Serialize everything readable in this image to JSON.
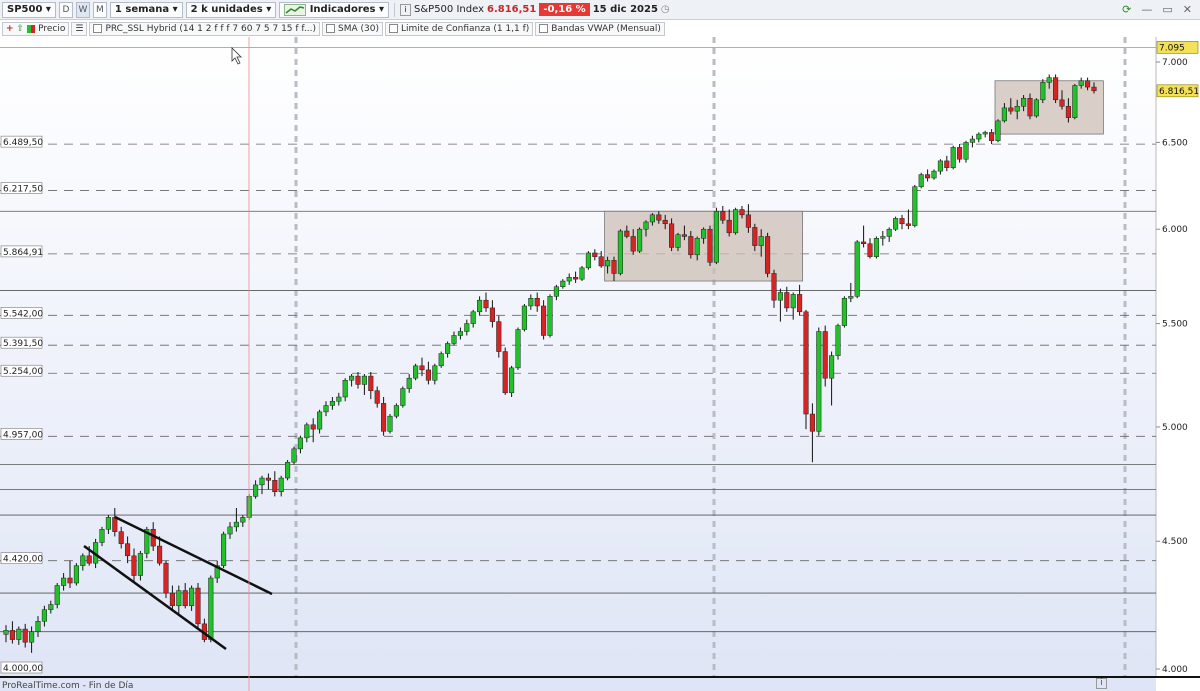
{
  "toolbar": {
    "symbol": "SP500",
    "period_buttons": [
      "D",
      "W",
      "M"
    ],
    "timeframe": "1 semana",
    "units": "2 k unidades",
    "indicators_label": "Indicadores",
    "instrument_name": "S&P500 Index",
    "last_price": "6.816,51",
    "change": "-0,16 %",
    "date": "15 dic 2025"
  },
  "indicator_bar": {
    "price_label": "Precio",
    "items": [
      "PRC_SSL Hybrid (14 1 2 f f f 7 60 7 5 7 15 f f...)",
      "SMA (30)",
      "Limite de Confianza (1 1,1 f)",
      "Bandas VWAP  (Mensual)"
    ]
  },
  "footer": {
    "source": "ProRealTime.com - Fin de Día"
  },
  "colors": {
    "up": "#22c02a",
    "down": "#d62424",
    "zone": "#cdbfb6",
    "line_label": "#f4e15a"
  },
  "chart_data": {
    "type": "candlestick",
    "y_scale": "log",
    "y_range": [
      4000,
      7150
    ],
    "right_axis_ticks": [
      {
        "value": 7000,
        "label": "7.000"
      },
      {
        "value": 6500,
        "label": "6.500"
      },
      {
        "value": 6000,
        "label": "6.000"
      },
      {
        "value": 5500,
        "label": "5.500"
      },
      {
        "value": 5000,
        "label": "5.000"
      },
      {
        "value": 4500,
        "label": "4.500"
      },
      {
        "value": 4000,
        "label": "4.000"
      }
    ],
    "left_level_labels": [
      {
        "value": 6489.5,
        "label": "6.489,50"
      },
      {
        "value": 6217.5,
        "label": "6.217,50"
      },
      {
        "value": 5864.91,
        "label": "5.864,91"
      },
      {
        "value": 5542,
        "label": "5.542,00"
      },
      {
        "value": 5391.5,
        "label": "5.391,50"
      },
      {
        "value": 5254,
        "label": "5.254,00"
      },
      {
        "value": 4957,
        "label": "4.957,00"
      },
      {
        "value": 4420,
        "label": "4.420,00"
      },
      {
        "value": 4000,
        "label": "4.000,00"
      }
    ],
    "dashed_levels": [
      6489.5,
      6217.5,
      5864.91,
      5542,
      5391.5,
      5254,
      4957,
      4420
    ],
    "solid_levels": [
      6100,
      5670,
      4830,
      4720,
      4610,
      4290,
      4140
    ],
    "highlight_labels": [
      {
        "value": 7095,
        "label": "7.095"
      },
      {
        "value": 6816.51,
        "label": "6.816,51"
      }
    ],
    "candles": [
      [
        4130,
        4165,
        4100,
        4145
      ],
      [
        4145,
        4180,
        4095,
        4110
      ],
      [
        4110,
        4160,
        4090,
        4150
      ],
      [
        4150,
        4170,
        4080,
        4100
      ],
      [
        4100,
        4160,
        4060,
        4140
      ],
      [
        4140,
        4200,
        4120,
        4180
      ],
      [
        4180,
        4240,
        4160,
        4225
      ],
      [
        4225,
        4260,
        4210,
        4245
      ],
      [
        4245,
        4330,
        4230,
        4320
      ],
      [
        4320,
        4370,
        4300,
        4350
      ],
      [
        4350,
        4420,
        4310,
        4330
      ],
      [
        4330,
        4410,
        4320,
        4400
      ],
      [
        4400,
        4450,
        4380,
        4440
      ],
      [
        4440,
        4480,
        4400,
        4410
      ],
      [
        4410,
        4510,
        4390,
        4495
      ],
      [
        4495,
        4560,
        4480,
        4550
      ],
      [
        4550,
        4610,
        4530,
        4600
      ],
      [
        4600,
        4640,
        4520,
        4540
      ],
      [
        4540,
        4560,
        4470,
        4490
      ],
      [
        4490,
        4520,
        4410,
        4440
      ],
      [
        4440,
        4470,
        4330,
        4360
      ],
      [
        4360,
        4460,
        4340,
        4450
      ],
      [
        4450,
        4560,
        4430,
        4550
      ],
      [
        4550,
        4580,
        4460,
        4480
      ],
      [
        4480,
        4520,
        4400,
        4410
      ],
      [
        4410,
        4420,
        4270,
        4290
      ],
      [
        4290,
        4320,
        4220,
        4240
      ],
      [
        4240,
        4320,
        4200,
        4300
      ],
      [
        4300,
        4330,
        4230,
        4240
      ],
      [
        4240,
        4320,
        4220,
        4310
      ],
      [
        4310,
        4330,
        4150,
        4170
      ],
      [
        4170,
        4190,
        4100,
        4110
      ],
      [
        4110,
        4360,
        4100,
        4350
      ],
      [
        4350,
        4420,
        4330,
        4400
      ],
      [
        4400,
        4540,
        4390,
        4530
      ],
      [
        4530,
        4580,
        4510,
        4560
      ],
      [
        4560,
        4640,
        4540,
        4580
      ],
      [
        4580,
        4610,
        4560,
        4600
      ],
      [
        4600,
        4700,
        4590,
        4690
      ],
      [
        4690,
        4760,
        4680,
        4740
      ],
      [
        4740,
        4780,
        4700,
        4770
      ],
      [
        4770,
        4790,
        4720,
        4760
      ],
      [
        4760,
        4800,
        4690,
        4710
      ],
      [
        4710,
        4780,
        4690,
        4770
      ],
      [
        4770,
        4850,
        4760,
        4840
      ],
      [
        4840,
        4910,
        4830,
        4900
      ],
      [
        4900,
        4960,
        4880,
        4950
      ],
      [
        4950,
        5020,
        4930,
        5010
      ],
      [
        5010,
        5040,
        4930,
        4990
      ],
      [
        4990,
        5080,
        4970,
        5070
      ],
      [
        5070,
        5120,
        5050,
        5100
      ],
      [
        5100,
        5140,
        5080,
        5120
      ],
      [
        5120,
        5160,
        5100,
        5140
      ],
      [
        5140,
        5230,
        5120,
        5220
      ],
      [
        5220,
        5250,
        5190,
        5240
      ],
      [
        5240,
        5260,
        5180,
        5200
      ],
      [
        5200,
        5250,
        5150,
        5240
      ],
      [
        5240,
        5260,
        5130,
        5170
      ],
      [
        5170,
        5190,
        5090,
        5110
      ],
      [
        5110,
        5140,
        4960,
        4980
      ],
      [
        4980,
        5060,
        4970,
        5050
      ],
      [
        5050,
        5110,
        5040,
        5100
      ],
      [
        5100,
        5190,
        5090,
        5180
      ],
      [
        5180,
        5250,
        5160,
        5230
      ],
      [
        5230,
        5300,
        5220,
        5290
      ],
      [
        5290,
        5330,
        5240,
        5270
      ],
      [
        5270,
        5310,
        5200,
        5220
      ],
      [
        5220,
        5300,
        5200,
        5290
      ],
      [
        5290,
        5360,
        5280,
        5350
      ],
      [
        5350,
        5410,
        5330,
        5400
      ],
      [
        5400,
        5460,
        5390,
        5440
      ],
      [
        5440,
        5480,
        5420,
        5460
      ],
      [
        5460,
        5520,
        5440,
        5500
      ],
      [
        5500,
        5570,
        5480,
        5560
      ],
      [
        5560,
        5640,
        5540,
        5620
      ],
      [
        5620,
        5660,
        5560,
        5580
      ],
      [
        5580,
        5620,
        5480,
        5510
      ],
      [
        5510,
        5540,
        5330,
        5360
      ],
      [
        5360,
        5380,
        5150,
        5160
      ],
      [
        5160,
        5290,
        5140,
        5280
      ],
      [
        5280,
        5480,
        5270,
        5470
      ],
      [
        5470,
        5600,
        5460,
        5590
      ],
      [
        5590,
        5650,
        5570,
        5630
      ],
      [
        5630,
        5660,
        5560,
        5590
      ],
      [
        5590,
        5620,
        5420,
        5440
      ],
      [
        5440,
        5650,
        5430,
        5640
      ],
      [
        5640,
        5700,
        5620,
        5690
      ],
      [
        5690,
        5730,
        5680,
        5720
      ],
      [
        5720,
        5760,
        5700,
        5740
      ],
      [
        5740,
        5770,
        5710,
        5730
      ],
      [
        5730,
        5800,
        5720,
        5790
      ],
      [
        5790,
        5880,
        5780,
        5870
      ],
      [
        5870,
        5890,
        5830,
        5850
      ],
      [
        5850,
        5880,
        5790,
        5800
      ],
      [
        5800,
        5850,
        5760,
        5830
      ],
      [
        5830,
        5850,
        5720,
        5760
      ],
      [
        5760,
        6000,
        5750,
        5990
      ],
      [
        5990,
        6020,
        5950,
        5960
      ],
      [
        5960,
        6000,
        5860,
        5880
      ],
      [
        5880,
        6010,
        5870,
        6000
      ],
      [
        6000,
        6050,
        5960,
        6040
      ],
      [
        6040,
        6090,
        6020,
        6080
      ],
      [
        6080,
        6100,
        6030,
        6050
      ],
      [
        6050,
        6080,
        6000,
        6030
      ],
      [
        6030,
        6060,
        5880,
        5900
      ],
      [
        5900,
        5980,
        5880,
        5970
      ],
      [
        5970,
        6020,
        5940,
        5960
      ],
      [
        5960,
        5990,
        5840,
        5860
      ],
      [
        5860,
        5960,
        5830,
        5950
      ],
      [
        5950,
        6010,
        5920,
        6000
      ],
      [
        6000,
        6020,
        5800,
        5820
      ],
      [
        5820,
        6120,
        5810,
        6100
      ],
      [
        6100,
        6130,
        6030,
        6050
      ],
      [
        6050,
        6110,
        5960,
        5980
      ],
      [
        5980,
        6120,
        5970,
        6110
      ],
      [
        6110,
        6130,
        6060,
        6080
      ],
      [
        6080,
        6140,
        5980,
        6010
      ],
      [
        6010,
        6030,
        5880,
        5910
      ],
      [
        5910,
        6000,
        5850,
        5960
      ],
      [
        5960,
        5980,
        5740,
        5760
      ],
      [
        5760,
        5780,
        5580,
        5620
      ],
      [
        5620,
        5680,
        5510,
        5660
      ],
      [
        5660,
        5690,
        5560,
        5580
      ],
      [
        5580,
        5660,
        5520,
        5650
      ],
      [
        5650,
        5700,
        5540,
        5560
      ],
      [
        5560,
        5570,
        4990,
        5060
      ],
      [
        5060,
        5110,
        4840,
        4980
      ],
      [
        4980,
        5480,
        4960,
        5460
      ],
      [
        5460,
        5490,
        5190,
        5230
      ],
      [
        5230,
        5360,
        5100,
        5340
      ],
      [
        5340,
        5500,
        5320,
        5490
      ],
      [
        5490,
        5640,
        5480,
        5630
      ],
      [
        5630,
        5710,
        5610,
        5640
      ],
      [
        5640,
        5940,
        5630,
        5930
      ],
      [
        5930,
        6020,
        5900,
        5920
      ],
      [
        5920,
        5950,
        5840,
        5850
      ],
      [
        5850,
        5960,
        5840,
        5950
      ],
      [
        5950,
        5990,
        5910,
        5960
      ],
      [
        5960,
        6010,
        5930,
        6000
      ],
      [
        6000,
        6070,
        5990,
        6060
      ],
      [
        6060,
        6080,
        6000,
        6030
      ],
      [
        6030,
        6110,
        6000,
        6020
      ],
      [
        6020,
        6250,
        6010,
        6240
      ],
      [
        6240,
        6320,
        6230,
        6310
      ],
      [
        6310,
        6340,
        6270,
        6290
      ],
      [
        6290,
        6340,
        6280,
        6330
      ],
      [
        6330,
        6400,
        6310,
        6390
      ],
      [
        6390,
        6420,
        6330,
        6350
      ],
      [
        6350,
        6480,
        6340,
        6470
      ],
      [
        6470,
        6490,
        6380,
        6400
      ],
      [
        6400,
        6510,
        6380,
        6500
      ],
      [
        6500,
        6540,
        6470,
        6520
      ],
      [
        6520,
        6560,
        6500,
        6550
      ],
      [
        6550,
        6570,
        6530,
        6560
      ],
      [
        6560,
        6580,
        6490,
        6510
      ],
      [
        6510,
        6640,
        6500,
        6630
      ],
      [
        6630,
        6740,
        6620,
        6710
      ],
      [
        6710,
        6770,
        6670,
        6690
      ],
      [
        6690,
        6760,
        6640,
        6720
      ],
      [
        6720,
        6790,
        6690,
        6770
      ],
      [
        6770,
        6800,
        6640,
        6660
      ],
      [
        6660,
        6770,
        6650,
        6760
      ],
      [
        6760,
        6890,
        6740,
        6870
      ],
      [
        6870,
        6920,
        6830,
        6900
      ],
      [
        6900,
        6920,
        6740,
        6760
      ],
      [
        6760,
        6820,
        6700,
        6720
      ],
      [
        6720,
        6770,
        6620,
        6650
      ],
      [
        6650,
        6860,
        6640,
        6850
      ],
      [
        6850,
        6900,
        6830,
        6880
      ],
      [
        6880,
        6900,
        6820,
        6840
      ],
      [
        6840,
        6870,
        6800,
        6816.51
      ]
    ]
  }
}
